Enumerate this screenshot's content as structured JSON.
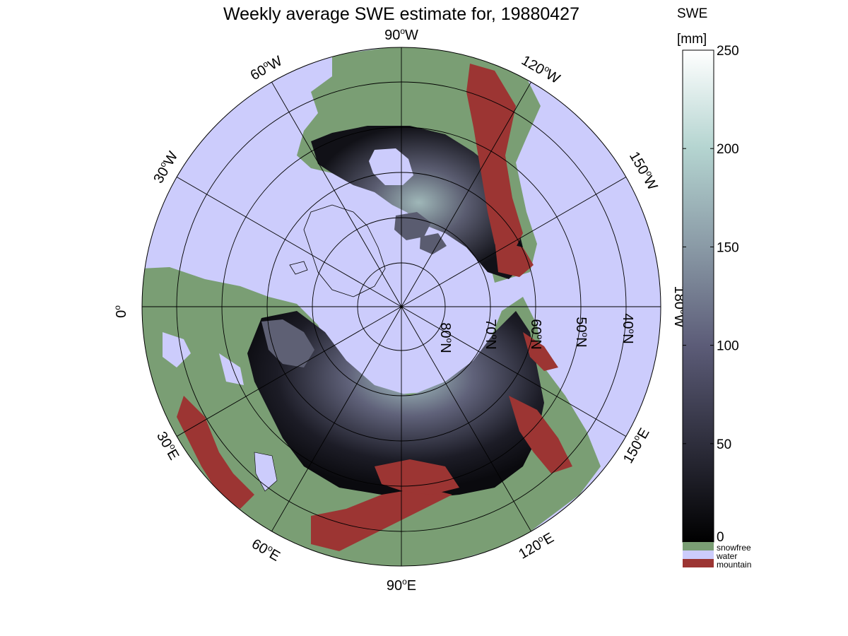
{
  "title": "Weekly average SWE estimate for, 19880427",
  "colorbar": {
    "label_line1": "SWE",
    "label_line2": "[mm]",
    "ticks": [
      "0",
      "50",
      "100",
      "150",
      "200",
      "250"
    ],
    "tick_values": [
      0,
      50,
      100,
      150,
      200,
      250
    ],
    "range": [
      0,
      250
    ]
  },
  "legend": {
    "items": [
      {
        "label": "snowfree",
        "color": "#7a9e74"
      },
      {
        "label": "water",
        "color": "#ccccfc"
      },
      {
        "label": "mountain",
        "color": "#9c3533"
      }
    ]
  },
  "graticule": {
    "longitudes": [
      {
        "deg": "90",
        "sup": "o",
        "dir": "W"
      },
      {
        "deg": "120",
        "sup": "o",
        "dir": "W"
      },
      {
        "deg": "150",
        "sup": "o",
        "dir": "W"
      },
      {
        "deg": "180",
        "sup": "o",
        "dir": "W"
      },
      {
        "deg": "150",
        "sup": "o",
        "dir": "E"
      },
      {
        "deg": "120",
        "sup": "o",
        "dir": "E"
      },
      {
        "deg": "90",
        "sup": "o",
        "dir": "E"
      },
      {
        "deg": "60",
        "sup": "o",
        "dir": "E"
      },
      {
        "deg": "30",
        "sup": "o",
        "dir": "E"
      },
      {
        "deg": "0",
        "sup": "o",
        "dir": ""
      },
      {
        "deg": "30",
        "sup": "o",
        "dir": "W"
      },
      {
        "deg": "60",
        "sup": "o",
        "dir": "W"
      }
    ],
    "latitudes": [
      {
        "deg": "80",
        "sup": "o",
        "dir": "N"
      },
      {
        "deg": "70",
        "sup": "o",
        "dir": "N"
      },
      {
        "deg": "60",
        "sup": "o",
        "dir": "N"
      },
      {
        "deg": "50",
        "sup": "o",
        "dir": "N"
      },
      {
        "deg": "40",
        "sup": "o",
        "dir": "N"
      }
    ]
  },
  "colors": {
    "water": "#ccccfc",
    "snowfree": "#7a9e74",
    "mountain": "#9c3533",
    "snow_low": "#0b0b10",
    "snow_mid": "#5c5c78",
    "snow_high": "#b4d4d0",
    "snow_max": "#f8fcfc"
  }
}
